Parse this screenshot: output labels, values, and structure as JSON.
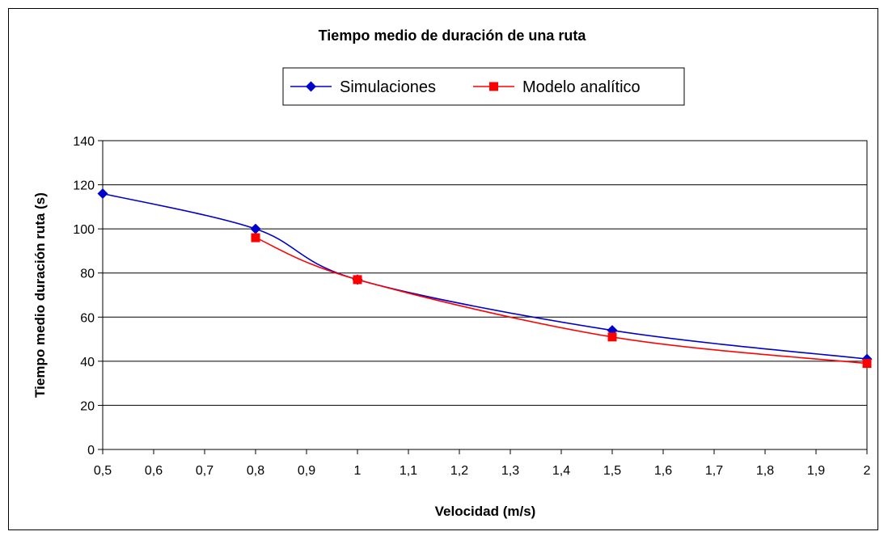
{
  "chart_data": {
    "type": "line",
    "title": "Tiempo medio de duración de una ruta",
    "xlabel": "Velocidad (m/s)",
    "ylabel": "Tiempo medio duración ruta (s)",
    "xlim": [
      0.5,
      2
    ],
    "ylim": [
      0,
      140
    ],
    "x_ticks": [
      "0,5",
      "0,6",
      "0,7",
      "0,8",
      "0,9",
      "1",
      "1,1",
      "1,2",
      "1,3",
      "1,4",
      "1,5",
      "1,6",
      "1,7",
      "1,8",
      "1,9",
      "2"
    ],
    "y_ticks": [
      "0",
      "20",
      "40",
      "60",
      "80",
      "100",
      "120",
      "140"
    ],
    "grid": true,
    "legend_position": "top",
    "series": [
      {
        "name": "Simulaciones",
        "color": "#0000cc",
        "marker": "diamond",
        "x": [
          0.5,
          0.8,
          1.0,
          1.5,
          2.0
        ],
        "y": [
          116,
          100,
          77,
          54,
          41
        ]
      },
      {
        "name": "Modelo analítico",
        "color": "#ff0000",
        "marker": "square",
        "x": [
          0.8,
          1.0,
          1.5,
          2.0
        ],
        "y": [
          96,
          77,
          51,
          39
        ]
      }
    ]
  }
}
